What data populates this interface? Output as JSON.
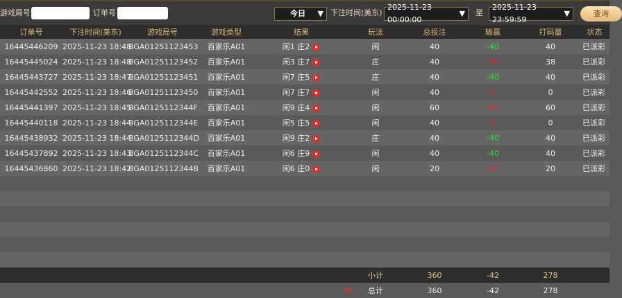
{
  "filters": {
    "round_label": "游戏局号",
    "round_value": "",
    "order_label": "订单号",
    "order_value": "",
    "period": "今日",
    "time_label": "下注时间(美东)",
    "start": "2025-11-23 00:00:00",
    "to_label": "至",
    "end": "2025-11-23 23:59:59",
    "query": "查询"
  },
  "columns": [
    "订单号",
    "下注时间(美东)",
    "游戏局号",
    "游戏类型",
    "结果",
    "玩法",
    "总投注",
    "输赢",
    "打码量",
    "状态"
  ],
  "rows": [
    {
      "order": "16445446209",
      "time": "2025-11-23 18:48",
      "round": "BGA01251123453",
      "type": "百家乐A01",
      "result": "闲1 庄2",
      "play": "闲",
      "bet": "40",
      "win": "-40",
      "valid": "40",
      "status": "已派彩"
    },
    {
      "order": "16445445024",
      "time": "2025-11-23 18:48",
      "round": "BGA01251123452",
      "type": "百家乐A01",
      "result": "闲3 庄7",
      "play": "庄",
      "bet": "40",
      "win": "38",
      "valid": "38",
      "status": "已派彩"
    },
    {
      "order": "16445443727",
      "time": "2025-11-23 18:47",
      "round": "BGA01251123451",
      "type": "百家乐A01",
      "result": "闲7 庄5",
      "play": "庄",
      "bet": "40",
      "win": "-40",
      "valid": "40",
      "status": "已派彩"
    },
    {
      "order": "16445442552",
      "time": "2025-11-23 18:46",
      "round": "BGA01251123450",
      "type": "百家乐A01",
      "result": "闲7 庄7",
      "play": "闲",
      "bet": "40",
      "win": "0",
      "valid": "0",
      "status": "已派彩"
    },
    {
      "order": "16445441397",
      "time": "2025-11-23 18:45",
      "round": "BGA0125112344F",
      "type": "百家乐A01",
      "result": "闲9 庄4",
      "play": "闲",
      "bet": "60",
      "win": "60",
      "valid": "60",
      "status": "已派彩"
    },
    {
      "order": "16445440118",
      "time": "2025-11-23 18:44",
      "round": "BGA0125112344E",
      "type": "百家乐A01",
      "result": "闲5 庄5",
      "play": "闲",
      "bet": "40",
      "win": "0",
      "valid": "0",
      "status": "已派彩"
    },
    {
      "order": "16445438932",
      "time": "2025-11-23 18:44",
      "round": "BGA0125112344D",
      "type": "百家乐A01",
      "result": "闲9 庄2",
      "play": "庄",
      "bet": "40",
      "win": "-40",
      "valid": "40",
      "status": "已派彩"
    },
    {
      "order": "16445437892",
      "time": "2025-11-23 18:43",
      "round": "BGA0125112344C",
      "type": "百家乐A01",
      "result": "闲6 庄9",
      "play": "闲",
      "bet": "40",
      "win": "-40",
      "valid": "40",
      "status": "已派彩"
    },
    {
      "order": "16445436860",
      "time": "2025-11-23 18:42",
      "round": "BGA0125112344B",
      "type": "百家乐A01",
      "result": "闲6 庄0",
      "play": "闲",
      "bet": "20",
      "win": "20",
      "valid": "20",
      "status": "已派彩"
    }
  ],
  "subtotal": {
    "label": "小计",
    "bet": "360",
    "win": "-42",
    "valid": "278"
  },
  "total": {
    "label": "总计",
    "bet": "360",
    "win": "-42",
    "valid": "278"
  },
  "colors": {
    "win_positive": "#e02a2a",
    "win_negative": "#2ee02e",
    "header_text": "#d9b779"
  }
}
